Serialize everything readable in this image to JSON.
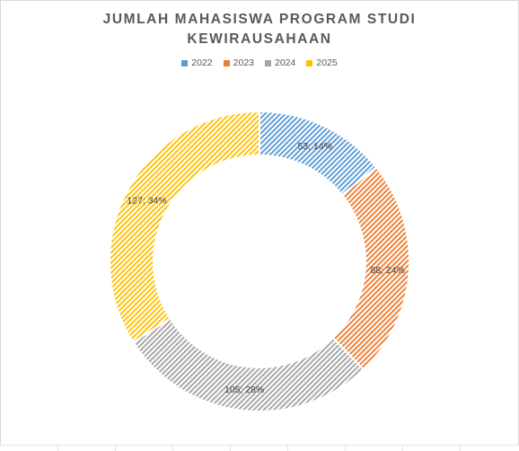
{
  "chart_data": {
    "type": "pie",
    "variant": "donut",
    "title_lines": [
      "JUMLAH MAHASISWA PROGRAM STUDI",
      "KEWIRAUSAHAAN"
    ],
    "legend_position": "top",
    "categories": [
      "2022",
      "2023",
      "2024",
      "2025"
    ],
    "values": [
      53,
      88,
      105,
      127
    ],
    "percents": [
      "14%",
      "24%",
      "28%",
      "34%"
    ],
    "data_labels": [
      "53; 14%",
      "88; 24%",
      "105; 28%",
      "127; 34%"
    ],
    "colors": [
      "#5b9bd5",
      "#ed7d31",
      "#a5a5a5",
      "#ffc000"
    ],
    "fill_pattern": "diagonal-hatch"
  }
}
